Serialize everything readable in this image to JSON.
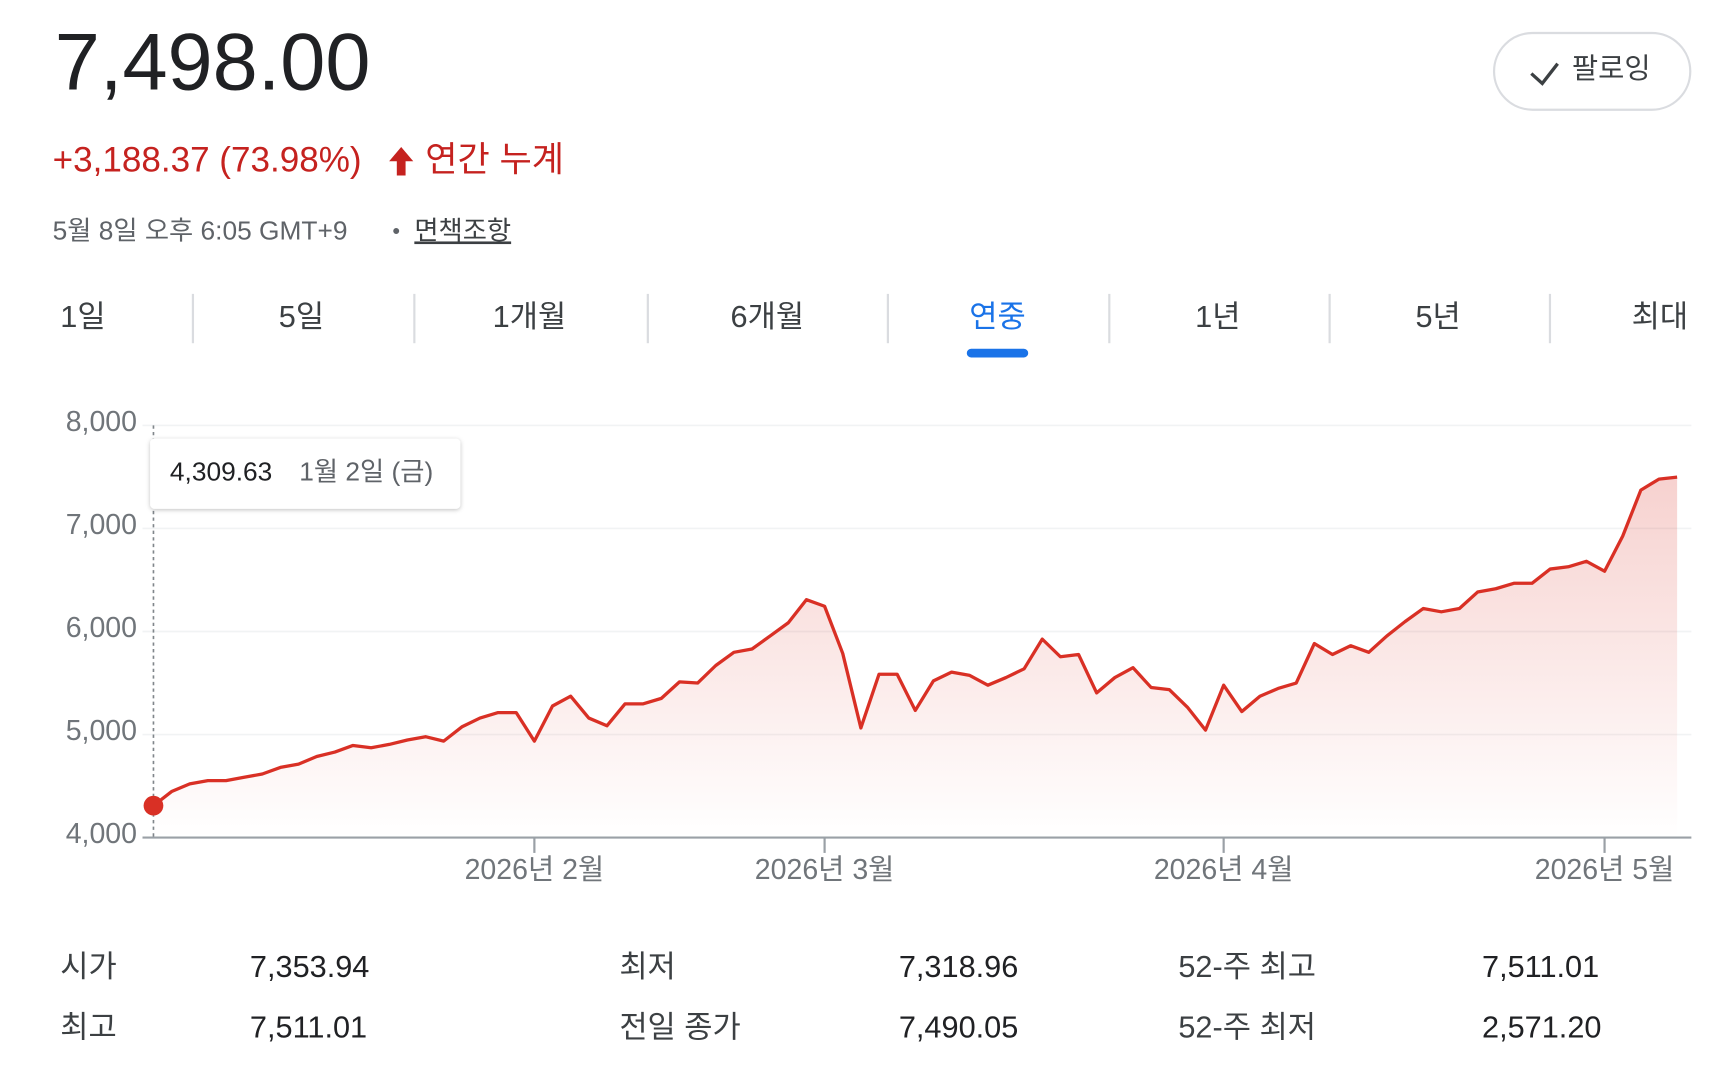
{
  "header": {
    "price": "7,498.00",
    "change": "+3,188.37 (73.98%)",
    "period": "연간 누계",
    "timestamp": "5월 8일 오후 6:05 GMT+9",
    "separator": "•",
    "disclaimer": "면책조항",
    "follow": "팔로잉"
  },
  "tabs": {
    "items": [
      "1일",
      "5일",
      "1개월",
      "6개월",
      "연중",
      "1년",
      "5년",
      "최대"
    ],
    "active": 4
  },
  "chart_data": {
    "type": "line",
    "color": "#d93025",
    "grid": true,
    "ylim": [
      4000,
      8000
    ],
    "yticks": [
      {
        "value": 4000,
        "label": "4,000"
      },
      {
        "value": 5000,
        "label": "5,000"
      },
      {
        "value": 6000,
        "label": "6,000"
      },
      {
        "value": 7000,
        "label": "7,000"
      },
      {
        "value": 8000,
        "label": "8,000"
      }
    ],
    "categories": [
      null,
      null,
      null,
      null,
      null,
      null,
      null,
      null,
      null,
      null,
      null,
      null,
      null,
      null,
      null,
      null,
      null,
      null,
      null,
      null,
      null,
      "2026년 2월",
      null,
      null,
      null,
      null,
      null,
      null,
      null,
      null,
      null,
      null,
      null,
      null,
      null,
      null,
      null,
      "2026년 3월",
      null,
      null,
      null,
      null,
      null,
      null,
      null,
      null,
      null,
      null,
      null,
      null,
      null,
      null,
      null,
      null,
      null,
      null,
      null,
      null,
      null,
      "2026년 4월",
      null,
      null,
      null,
      null,
      null,
      null,
      null,
      null,
      null,
      null,
      null,
      null,
      null,
      null,
      null,
      null,
      null,
      null,
      null,
      null,
      "2026년 5월",
      null,
      null,
      null,
      null
    ],
    "values": [
      4309.63,
      4447,
      4521,
      4553,
      4553,
      4585,
      4617,
      4681,
      4713,
      4787,
      4830,
      4894,
      4872,
      4904,
      4947,
      4979,
      4936,
      5074,
      5160,
      5213,
      5213,
      4936,
      5277,
      5372,
      5160,
      5085,
      5298,
      5298,
      5351,
      5511,
      5500,
      5670,
      5798,
      5830,
      5957,
      6085,
      6309,
      6245,
      5787,
      5064,
      5585,
      5585,
      5234,
      5521,
      5606,
      5574,
      5479,
      5553,
      5638,
      5926,
      5755,
      5777,
      5404,
      5553,
      5649,
      5457,
      5436,
      5266,
      5043,
      5479,
      5223,
      5372,
      5447,
      5500,
      5883,
      5777,
      5862,
      5798,
      5957,
      6096,
      6223,
      6191,
      6223,
      6383,
      6415,
      6468,
      6468,
      6606,
      6628,
      6681,
      6585,
      6926,
      7372,
      7479,
      7498
    ],
    "tooltip": {
      "label": "4,309.63",
      "date": "1월 2일 (금)"
    }
  },
  "stats": {
    "rows": [
      [
        "시가",
        "7,353.94",
        "최저",
        "7,318.96",
        "52-주 최고",
        "7,511.01"
      ],
      [
        "최고",
        "7,511.01",
        "전일 종가",
        "7,490.05",
        "52-주 최저",
        "2,571.20"
      ]
    ]
  }
}
